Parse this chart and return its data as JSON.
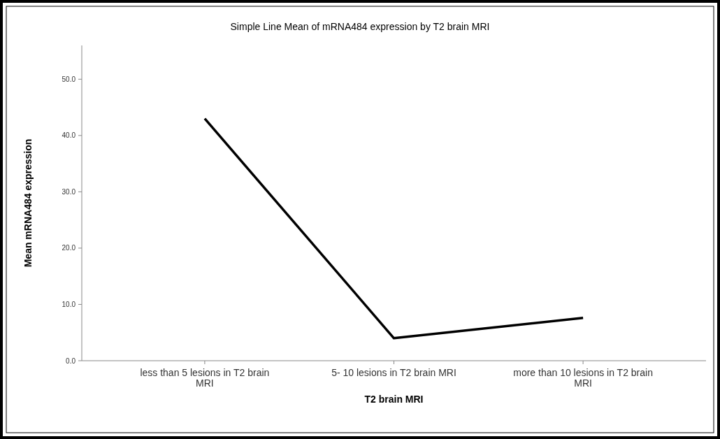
{
  "chart_data": {
    "type": "line",
    "title": "Simple Line Mean of mRNA484 expression by T2 brain MRI",
    "xlabel": "T2 brain MRI",
    "ylabel": "Mean mRNA484 expression",
    "categories": [
      "less than 5 lesions in T2 brain MRI",
      "5- 10 lesions in T2 brain MRI",
      "more than 10 lesions in T2 brain MRI"
    ],
    "series": [
      {
        "color": "#000000",
        "values": [
          43.0,
          4.0,
          7.6
        ]
      }
    ],
    "ylim": [
      0,
      56
    ],
    "yticks": [
      {
        "value": 0,
        "label": "0.0"
      },
      {
        "value": 10,
        "label": "10.0"
      },
      {
        "value": 20,
        "label": "20.0"
      },
      {
        "value": 30,
        "label": "30.0"
      },
      {
        "value": 40,
        "label": "40.0"
      },
      {
        "value": 50,
        "label": "50.0"
      }
    ],
    "grid": false,
    "marker": "none",
    "line_style": "solid"
  }
}
